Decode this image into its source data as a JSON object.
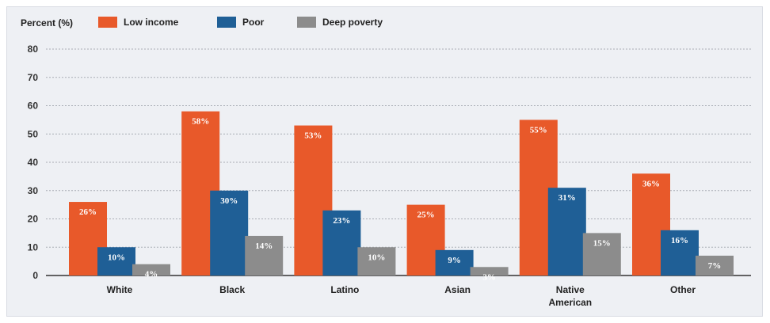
{
  "chart_data": {
    "type": "bar",
    "ylabel": "Percent (%)",
    "ylim": [
      0,
      80
    ],
    "yticks": [
      0,
      10,
      20,
      30,
      40,
      50,
      60,
      70,
      80
    ],
    "grid": true,
    "legend_position": "top",
    "categories": [
      "White",
      "Black",
      "Latino",
      "Asian",
      "Native American",
      "Other"
    ],
    "category_lines": [
      [
        "White"
      ],
      [
        "Black"
      ],
      [
        "Latino"
      ],
      [
        "Asian"
      ],
      [
        "Native",
        "American"
      ],
      [
        "Other"
      ]
    ],
    "series": [
      {
        "name": "Low income",
        "color": "#e8592a",
        "values": [
          26,
          58,
          53,
          25,
          55,
          36
        ],
        "labels": [
          "26%",
          "58%",
          "53%",
          "25%",
          "55%",
          "36%"
        ]
      },
      {
        "name": "Poor",
        "color": "#1f5f96",
        "values": [
          10,
          30,
          23,
          9,
          31,
          16
        ],
        "labels": [
          "10%",
          "30%",
          "23%",
          "9%",
          "31%",
          "16%"
        ]
      },
      {
        "name": "Deep poverty",
        "color": "#8c8c8c",
        "values": [
          4,
          14,
          10,
          3,
          15,
          7
        ],
        "labels": [
          "4%",
          "14%",
          "10%",
          "3%",
          "15%",
          "7%"
        ]
      }
    ]
  }
}
